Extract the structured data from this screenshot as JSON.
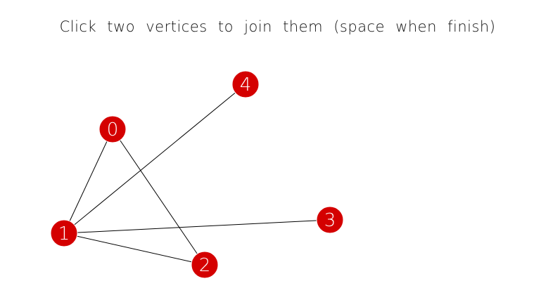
{
  "instruction": "Click two vertices to join them (space when finish)",
  "colors": {
    "background": "#ffffff",
    "vertex_fill": "#d40000",
    "vertex_label": "#ffffff",
    "edge": "#000000",
    "instruction_text": "#111111"
  },
  "vertices": [
    {
      "label": "0"
    },
    {
      "label": "1"
    },
    {
      "label": "2"
    },
    {
      "label": "3"
    },
    {
      "label": "4"
    }
  ],
  "edges": [
    [
      "0",
      "1"
    ],
    [
      "0",
      "2"
    ],
    [
      "1",
      "4"
    ],
    [
      "1",
      "3"
    ],
    [
      "1",
      "2"
    ]
  ]
}
